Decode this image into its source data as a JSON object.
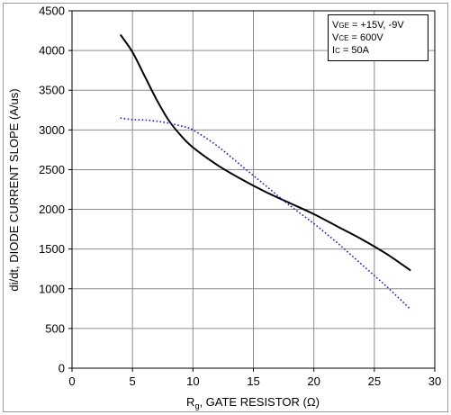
{
  "chart_data": {
    "type": "line",
    "xlabel": "R",
    "xlabel_sub": "g",
    "xlabel_rest": ", GATE RESISTOR (Ω)",
    "ylabel": "di/dt, DIODE CURRENT SLOPE (A/us)",
    "xlim": [
      0,
      30
    ],
    "ylim": [
      0,
      4500
    ],
    "xticks": [
      0,
      5,
      10,
      15,
      20,
      25,
      30
    ],
    "yticks": [
      0,
      500,
      1000,
      1500,
      2000,
      2500,
      3000,
      3500,
      4000,
      4500
    ],
    "grid": true,
    "legend_position": "top-right",
    "conditions": [
      {
        "main": "V",
        "sub": "GE",
        "rest": " = +15V, -9V"
      },
      {
        "main": "V",
        "sub": "CE",
        "rest": " = 600V"
      },
      {
        "main": "I",
        "sub": "C",
        "rest": " = 50A"
      }
    ],
    "series": [
      {
        "style": "solid",
        "color": "#000000",
        "x": [
          4,
          5,
          6,
          7,
          8,
          9,
          10,
          12,
          14,
          16,
          18,
          20,
          22,
          24,
          26,
          28
        ],
        "y": [
          4200,
          3980,
          3680,
          3380,
          3120,
          2930,
          2780,
          2560,
          2380,
          2220,
          2080,
          1940,
          1780,
          1620,
          1440,
          1230
        ]
      },
      {
        "style": "dotted",
        "color": "#1f1fb4",
        "x": [
          4,
          5,
          6,
          7,
          8,
          9,
          10,
          12,
          14,
          16,
          18,
          20,
          22,
          24,
          26,
          28
        ],
        "y": [
          3150,
          3130,
          3125,
          3110,
          3085,
          3050,
          3000,
          2800,
          2550,
          2300,
          2050,
          1820,
          1570,
          1300,
          1030,
          740
        ]
      }
    ]
  }
}
